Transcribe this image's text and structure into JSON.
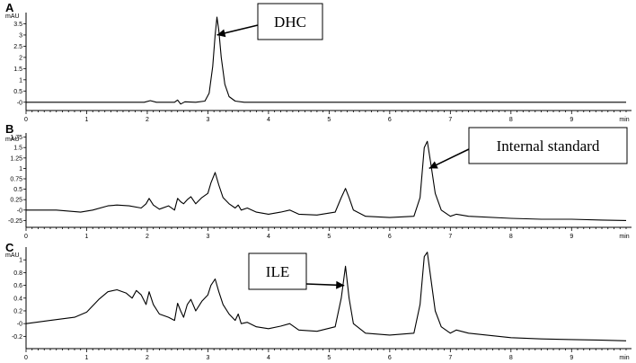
{
  "chart_data": [
    {
      "type": "line",
      "panel_label": "A",
      "y_unit": "mAU",
      "x_unit": "min",
      "xlim": [
        0,
        9.9
      ],
      "ylim": [
        -0.25,
        4.0
      ],
      "y_ticks": [
        "-0",
        "0.5",
        "1",
        "1.5",
        "2",
        "2.5",
        "3",
        "3.5"
      ],
      "y_tick_values": [
        0,
        0.5,
        1,
        1.5,
        2,
        2.5,
        3,
        3.5
      ],
      "x_ticks": [
        "0",
        "1",
        "2",
        "3",
        "4",
        "5",
        "6",
        "7",
        "8",
        "9",
        "min"
      ],
      "annotation": {
        "text": "DHC",
        "points_to_x": 3.15,
        "points_to_y": 3.0
      },
      "series": [
        {
          "x": [
            0,
            0.5,
            1.0,
            1.5,
            1.95,
            2.05,
            2.15,
            2.45,
            2.5,
            2.55,
            2.62,
            2.8,
            2.95,
            3.02,
            3.08,
            3.12,
            3.15,
            3.18,
            3.22,
            3.28,
            3.35,
            3.45,
            3.6,
            4.0,
            4.5,
            5.0,
            5.5,
            6.0,
            6.5,
            7.0,
            7.5,
            8.0,
            8.5,
            9.0,
            9.5,
            9.9
          ],
          "y": [
            0.0,
            0.0,
            0.0,
            0.0,
            0.0,
            0.07,
            0.0,
            0.0,
            0.1,
            -0.08,
            0.02,
            0.0,
            0.05,
            0.4,
            1.6,
            3.0,
            3.8,
            3.2,
            2.0,
            0.8,
            0.25,
            0.05,
            0.0,
            0.0,
            0.0,
            0.0,
            0.0,
            0.0,
            0.0,
            0.0,
            0.0,
            0.0,
            0.0,
            0.0,
            0.0,
            0.0
          ]
        }
      ]
    },
    {
      "type": "line",
      "panel_label": "B",
      "y_unit": "mAU",
      "x_unit": "min",
      "xlim": [
        0,
        9.9
      ],
      "ylim": [
        -0.35,
        1.85
      ],
      "y_ticks": [
        "1.75",
        "1.5",
        "1.25",
        "1",
        "0.75",
        "0.5",
        "0.25",
        "-0",
        "-0.25"
      ],
      "y_tick_values": [
        1.75,
        1.5,
        1.25,
        1,
        0.75,
        0.5,
        0.25,
        0,
        -0.25
      ],
      "x_ticks": [
        "0",
        "1",
        "2",
        "3",
        "4",
        "5",
        "6",
        "7",
        "8",
        "9",
        "min"
      ],
      "annotation": {
        "text": "Internal standard",
        "points_to_x": 6.65,
        "points_to_y": 1.0
      },
      "series": [
        {
          "x": [
            0,
            0.5,
            0.9,
            1.1,
            1.35,
            1.5,
            1.7,
            1.9,
            1.98,
            2.03,
            2.1,
            2.2,
            2.35,
            2.45,
            2.5,
            2.55,
            2.6,
            2.66,
            2.72,
            2.8,
            2.9,
            3.0,
            3.05,
            3.12,
            3.18,
            3.25,
            3.35,
            3.45,
            3.5,
            3.55,
            3.65,
            3.8,
            4.0,
            4.2,
            4.35,
            4.5,
            4.8,
            5.1,
            5.2,
            5.27,
            5.33,
            5.4,
            5.6,
            6.0,
            6.4,
            6.5,
            6.57,
            6.62,
            6.68,
            6.75,
            6.85,
            7.0,
            7.1,
            7.3,
            8.0,
            8.5,
            9.0,
            9.5,
            9.9
          ],
          "y": [
            0.0,
            0.0,
            -0.05,
            0.0,
            0.1,
            0.12,
            0.1,
            0.05,
            0.15,
            0.28,
            0.12,
            0.02,
            0.1,
            0.0,
            0.28,
            0.2,
            0.15,
            0.25,
            0.32,
            0.15,
            0.3,
            0.4,
            0.65,
            0.9,
            0.6,
            0.3,
            0.15,
            0.05,
            0.12,
            0.0,
            0.05,
            -0.05,
            -0.1,
            -0.05,
            0.0,
            -0.1,
            -0.12,
            -0.05,
            0.3,
            0.52,
            0.3,
            0.0,
            -0.15,
            -0.18,
            -0.15,
            0.3,
            1.5,
            1.65,
            1.1,
            0.4,
            0.0,
            -0.15,
            -0.1,
            -0.15,
            -0.2,
            -0.22,
            -0.22,
            -0.24,
            -0.25
          ]
        }
      ]
    },
    {
      "type": "line",
      "panel_label": "C",
      "y_unit": "mAU",
      "x_unit": "min",
      "xlim": [
        0,
        9.9
      ],
      "ylim": [
        -0.35,
        1.2
      ],
      "y_ticks": [
        "1",
        "0.8",
        "0.6",
        "0.4",
        "0.2",
        "-0",
        "-0.2"
      ],
      "y_tick_values": [
        1,
        0.8,
        0.6,
        0.4,
        0.2,
        0,
        -0.2
      ],
      "x_ticks": [
        "0",
        "1",
        "2",
        "3",
        "4",
        "5",
        "6",
        "7",
        "8",
        "9",
        "min"
      ],
      "annotation": {
        "text": "ILE",
        "points_to_x": 5.25,
        "points_to_y": 0.6
      },
      "series": [
        {
          "x": [
            0,
            0.4,
            0.8,
            1.0,
            1.2,
            1.35,
            1.5,
            1.65,
            1.75,
            1.82,
            1.9,
            1.98,
            2.03,
            2.1,
            2.2,
            2.35,
            2.45,
            2.5,
            2.55,
            2.6,
            2.66,
            2.72,
            2.8,
            2.9,
            3.0,
            3.05,
            3.12,
            3.18,
            3.25,
            3.35,
            3.45,
            3.5,
            3.55,
            3.65,
            3.8,
            4.0,
            4.2,
            4.35,
            4.5,
            4.8,
            5.1,
            5.2,
            5.27,
            5.33,
            5.4,
            5.6,
            6.0,
            6.4,
            6.5,
            6.57,
            6.62,
            6.68,
            6.75,
            6.85,
            7.0,
            7.1,
            7.3,
            8.0,
            8.5,
            9.0,
            9.5,
            9.9
          ],
          "y": [
            0.0,
            0.05,
            0.1,
            0.18,
            0.38,
            0.5,
            0.53,
            0.48,
            0.4,
            0.52,
            0.45,
            0.3,
            0.5,
            0.3,
            0.15,
            0.1,
            0.05,
            0.32,
            0.2,
            0.1,
            0.3,
            0.38,
            0.2,
            0.35,
            0.45,
            0.6,
            0.7,
            0.5,
            0.3,
            0.15,
            0.05,
            0.15,
            0.0,
            0.02,
            -0.05,
            -0.08,
            -0.04,
            0.0,
            -0.1,
            -0.12,
            -0.05,
            0.4,
            0.9,
            0.4,
            0.0,
            -0.15,
            -0.18,
            -0.15,
            0.3,
            1.05,
            1.12,
            0.7,
            0.2,
            -0.05,
            -0.15,
            -0.1,
            -0.15,
            -0.22,
            -0.24,
            -0.25,
            -0.26,
            -0.27
          ]
        }
      ]
    }
  ]
}
